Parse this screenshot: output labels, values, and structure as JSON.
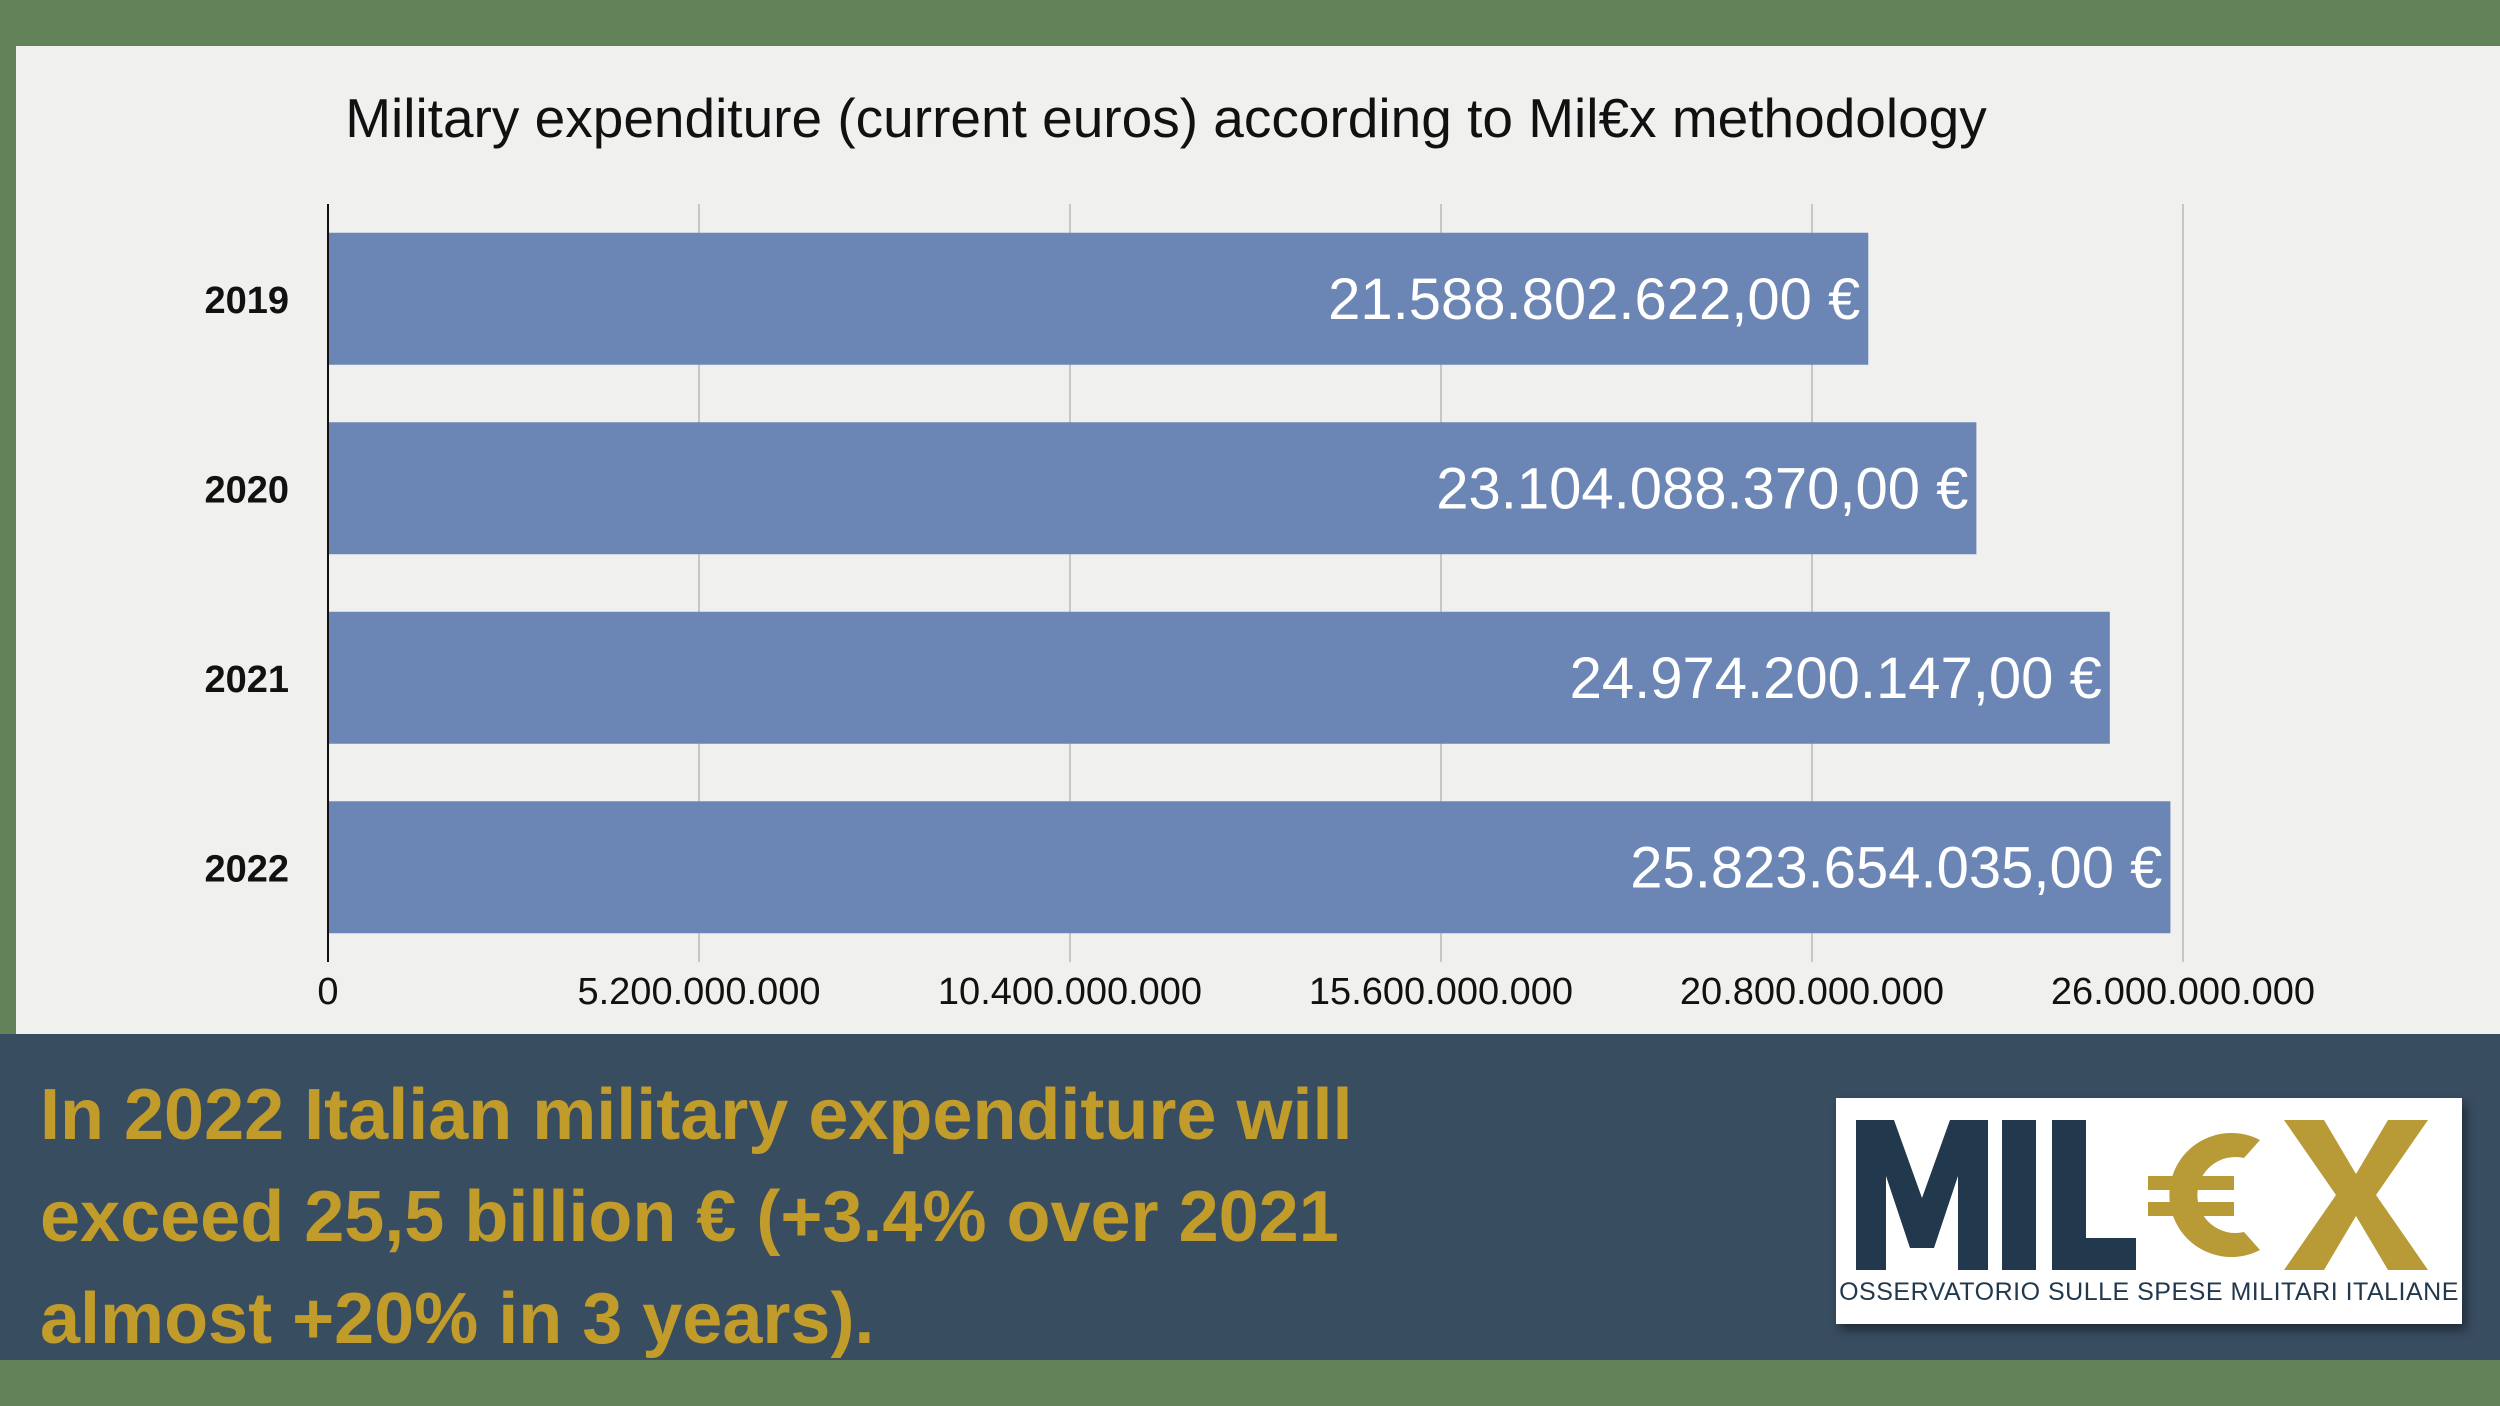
{
  "chart_data": {
    "type": "bar",
    "orientation": "horizontal",
    "title": "Military expenditure (current euros) according to Mil€x methodology",
    "categories": [
      "2019",
      "2020",
      "2021",
      "2022"
    ],
    "values": [
      21588802622,
      23104088370,
      24974200147,
      25823654035
    ],
    "value_labels": [
      "21.588.802.622,00 €",
      "23.104.088.370,00 €",
      "24.974.200.147,00 €",
      "25.823.654.035,00 €"
    ],
    "x_ticks": [
      0,
      5200000000,
      10400000000,
      15600000000,
      20800000000,
      26000000000
    ],
    "x_tick_labels": [
      "0",
      "5.200.000.000",
      "10.400.000.000",
      "15.600.000.000",
      "20.800.000.000",
      "26.000.000.000"
    ],
    "xlim": [
      0,
      26000000000
    ],
    "xlabel": "",
    "ylabel": "",
    "grid": true,
    "bar_color": "#6b85b5"
  },
  "banner": {
    "headline_lines": [
      "In 2022 Italian military expenditure will",
      "exceed 25,5 billion € (+3.4% over 2021",
      "almost +20% in 3 years)."
    ]
  },
  "logo": {
    "wordmark": "MIL€X",
    "tagline": "OSSERVATORIO SULLE SPESE MILITARI ITALIANE",
    "colors": {
      "dark": "#22384c",
      "gold": "#b89a37"
    }
  },
  "colors": {
    "frame": "#62825a",
    "panel": "#f0f1ee",
    "banner": "#394d61",
    "headline": "#c19c2b"
  }
}
